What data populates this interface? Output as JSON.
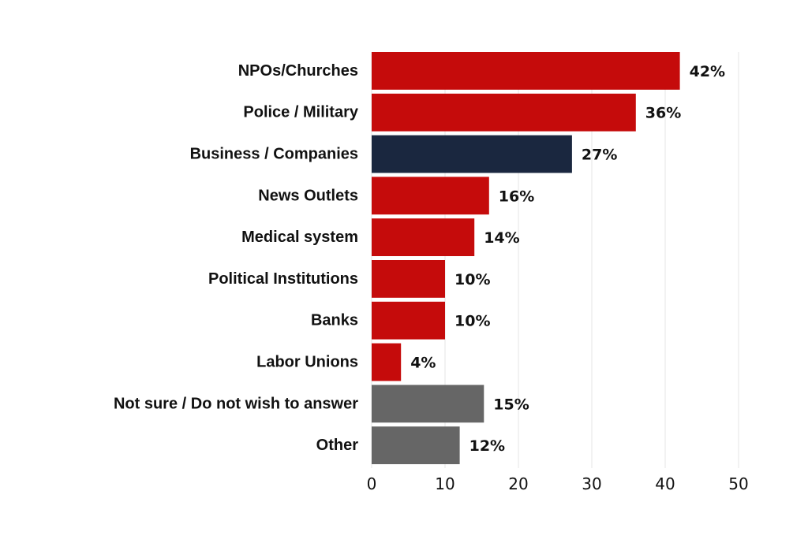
{
  "chart_data": {
    "type": "bar",
    "orientation": "horizontal",
    "title": "",
    "xlabel": "",
    "ylabel": "",
    "xlim": [
      0,
      50
    ],
    "ticks": [
      0,
      10,
      20,
      30,
      40,
      50
    ],
    "tick_labels": [
      "0",
      "10",
      "20",
      "30",
      "40",
      "50"
    ],
    "grid": "vertical",
    "categories": [
      "NPOs/Churches",
      "Police / Military",
      "Business / Companies",
      "News Outlets",
      "Medical system",
      "Political Institutions",
      "Banks",
      "Labor Unions",
      "Not sure / Do not wish to answer",
      "Other"
    ],
    "values": [
      42,
      36,
      27.3,
      16,
      14,
      10,
      10,
      4,
      15.3,
      12
    ],
    "value_labels": [
      "42%",
      "36%",
      "27%",
      "16%",
      "14%",
      "10%",
      "10%",
      "4%",
      "15%",
      "12%"
    ],
    "colors": [
      "#c50b0b",
      "#c50b0b",
      "#1a273f",
      "#c50b0b",
      "#c50b0b",
      "#c50b0b",
      "#c50b0b",
      "#c50b0b",
      "#666666",
      "#666666"
    ]
  }
}
